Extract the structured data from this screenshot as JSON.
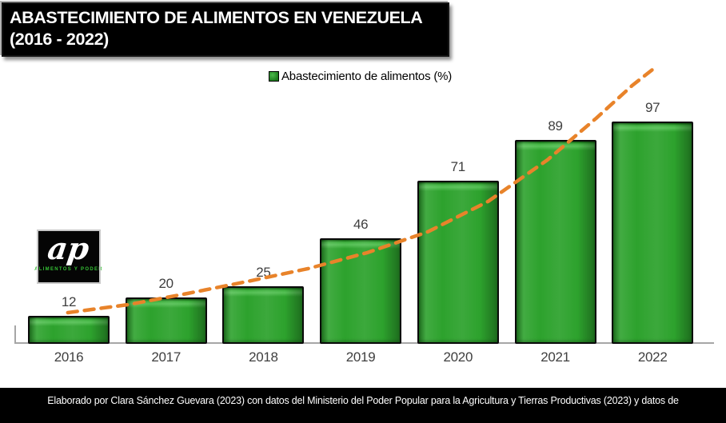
{
  "header": {
    "title_line1": "ABASTECIMIENTO DE ALIMENTOS EN VENEZUELA",
    "title_line2": "(2016 - 2022)"
  },
  "legend": {
    "label": "Abastecimiento de alimentos (%)",
    "swatch_color": "#2CA02C"
  },
  "logo": {
    "monogram": "ap",
    "caption": "ALIMENTOS Y PODER"
  },
  "footer": {
    "text": "Elaborado por Clara Sánchez Guevara (2023) con datos del Ministerio del Poder Popular para la Agricultura y  Tierras Productivas (2023) y datos de"
  },
  "colors": {
    "bar_fill": "#2CA02C",
    "bar_border": "#0A0A0A",
    "trendline_orange": "#E8832A",
    "axis_line": "#A6A6A6",
    "label_text": "#3F3F3F",
    "title_bg": "#000000",
    "title_text": "#FFFFFF",
    "footer_bg": "#000000",
    "footer_text": "#FFFFFF",
    "logo_green": "#35C135"
  },
  "chart_data": {
    "type": "bar",
    "title": "ABASTECIMIENTO DE ALIMENTOS EN VENEZUELA (2016 - 2022)",
    "categories": [
      "2016",
      "2017",
      "2018",
      "2019",
      "2020",
      "2021",
      "2022"
    ],
    "series": [
      {
        "name": "Abastecimiento de alimentos (%)",
        "values": [
          12,
          20,
          25,
          46,
          71,
          89,
          97
        ]
      }
    ],
    "data_labels": [
      12,
      20,
      25,
      46,
      71,
      89,
      97
    ],
    "xlabel": "",
    "ylabel": "",
    "ylim": [
      0,
      121
    ],
    "grid": false,
    "legend_position": "top-center",
    "bar_color": "#2CA02C",
    "trendline": {
      "type": "exponential",
      "style": "dashed",
      "color": "#E8832A",
      "points": [
        {
          "i": -0.01,
          "v": 13.3
        },
        {
          "i": 0.61,
          "v": 16.8
        },
        {
          "i": 1.22,
          "v": 21.7
        },
        {
          "i": 1.84,
          "v": 27.0
        },
        {
          "i": 2.46,
          "v": 32.6
        },
        {
          "i": 3.07,
          "v": 39.6
        },
        {
          "i": 3.69,
          "v": 48.7
        },
        {
          "i": 4.31,
          "v": 62.0
        },
        {
          "i": 4.92,
          "v": 80.2
        },
        {
          "i": 5.42,
          "v": 98.4
        },
        {
          "i": 5.79,
          "v": 112.7
        },
        {
          "i": 6.02,
          "v": 120.4
        }
      ]
    }
  }
}
